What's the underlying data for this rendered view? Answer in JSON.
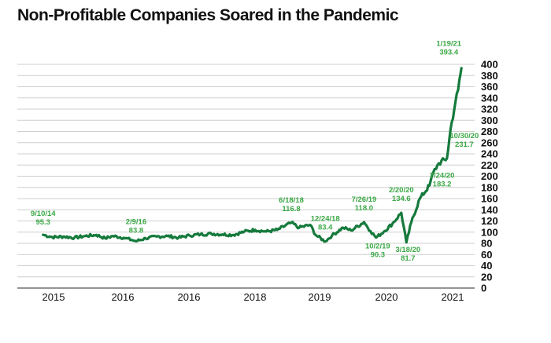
{
  "chart_data": {
    "type": "line",
    "title": "Non-Profitable Companies Soared in the Pandemic",
    "xlabel": "",
    "ylabel": "",
    "ylim": [
      0,
      400
    ],
    "y_ticks": [
      "0",
      "20",
      "40",
      "60",
      "80",
      "100",
      "120",
      "140",
      "160",
      "180",
      "200",
      "220",
      "240",
      "260",
      "280",
      "300",
      "320",
      "340",
      "360",
      "380",
      "400"
    ],
    "x_tick_labels": [
      "2015",
      "2016",
      "2016",
      "2018",
      "2019",
      "2020",
      "2021"
    ],
    "y_axis_side": "right",
    "grid": "horizontal",
    "line_color": "#157a3c",
    "annotation_color": "#3aa845",
    "series": [
      {
        "points": [
          [
            "2014-09-10",
            95.3
          ],
          [
            "2014-11-01",
            91
          ],
          [
            "2015-01-01",
            92
          ],
          [
            "2015-03-01",
            90
          ],
          [
            "2015-05-01",
            93
          ],
          [
            "2015-07-01",
            95
          ],
          [
            "2015-08-20",
            89
          ],
          [
            "2015-10-01",
            93
          ],
          [
            "2015-12-01",
            90
          ],
          [
            "2016-01-15",
            86
          ],
          [
            "2016-02-09",
            83.8
          ],
          [
            "2016-04-01",
            89
          ],
          [
            "2016-06-01",
            92
          ],
          [
            "2016-08-01",
            93
          ],
          [
            "2016-10-01",
            90
          ],
          [
            "2016-12-01",
            94
          ],
          [
            "2017-02-01",
            96
          ],
          [
            "2017-04-01",
            97
          ],
          [
            "2017-06-01",
            96
          ],
          [
            "2017-08-01",
            95
          ],
          [
            "2017-10-01",
            101
          ],
          [
            "2017-12-01",
            104
          ],
          [
            "2018-02-01",
            101
          ],
          [
            "2018-04-01",
            104
          ],
          [
            "2018-06-18",
            116.8
          ],
          [
            "2018-08-01",
            108
          ],
          [
            "2018-10-01",
            113
          ],
          [
            "2018-11-01",
            95
          ],
          [
            "2018-12-24",
            83.4
          ],
          [
            "2019-02-01",
            94
          ],
          [
            "2019-04-01",
            108
          ],
          [
            "2019-05-15",
            103
          ],
          [
            "2019-07-26",
            118
          ],
          [
            "2019-09-01",
            102
          ],
          [
            "2019-10-02",
            90.3
          ],
          [
            "2019-11-15",
            101
          ],
          [
            "2020-01-01",
            115
          ],
          [
            "2020-02-20",
            134.6
          ],
          [
            "2020-03-18",
            81.7
          ],
          [
            "2020-04-15",
            118
          ],
          [
            "2020-06-01",
            160
          ],
          [
            "2020-07-24",
            183.2
          ],
          [
            "2020-08-15",
            207
          ],
          [
            "2020-09-15",
            223
          ],
          [
            "2020-10-30",
            231.7
          ],
          [
            "2020-11-20",
            285
          ],
          [
            "2020-12-15",
            330
          ],
          [
            "2021-01-01",
            355
          ],
          [
            "2021-01-19",
            393.4
          ]
        ]
      }
    ],
    "annotations": [
      {
        "date": "9/10/14",
        "value": "95.3"
      },
      {
        "date": "2/9/16",
        "value": "83.8"
      },
      {
        "date": "6/18/18",
        "value": "116.8"
      },
      {
        "date": "12/24/18",
        "value": "83.4"
      },
      {
        "date": "7/26/19",
        "value": "118.0"
      },
      {
        "date": "10/2/19",
        "value": "90.3"
      },
      {
        "date": "2/20/20",
        "value": "134.6"
      },
      {
        "date": "3/18/20",
        "value": "81.7"
      },
      {
        "date": "7/24/20",
        "value": "183.2"
      },
      {
        "date": "10/30/20",
        "value": "231.7"
      },
      {
        "date": "1/19/21",
        "value": "393.4"
      }
    ]
  }
}
